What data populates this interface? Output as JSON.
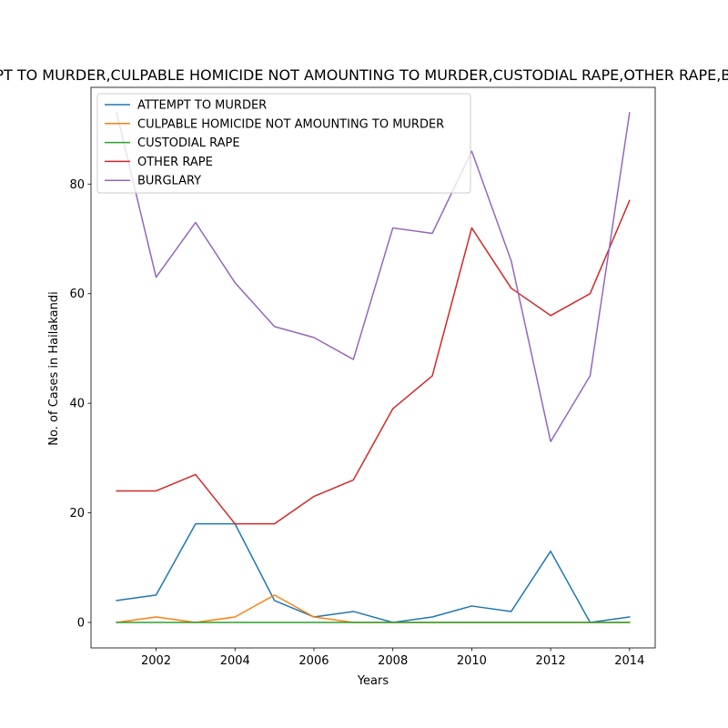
{
  "chart_data": {
    "type": "line",
    "title": "ATTEMPT TO MURDER,CULPABLE HOMICIDE NOT AMOUNTING TO MURDER,CUSTODIAL RAPE,OTHER RAPE,BURGLARY",
    "xlabel": "Years",
    "ylabel": "No. of Cases in Hailakandi",
    "xlim": [
      2000.35,
      2014.65
    ],
    "ylim": [
      -4.65,
      97.65
    ],
    "xticks": [
      2002,
      2004,
      2006,
      2008,
      2010,
      2012,
      2014
    ],
    "yticks": [
      0,
      20,
      40,
      60,
      80
    ],
    "grid": false,
    "legend_position": "top-left",
    "x": [
      2001,
      2002,
      2003,
      2004,
      2005,
      2006,
      2007,
      2008,
      2009,
      2010,
      2011,
      2012,
      2013,
      2014
    ],
    "series": [
      {
        "name": "ATTEMPT TO MURDER",
        "color": "#1f77b4",
        "values": [
          4,
          5,
          18,
          18,
          4,
          1,
          2,
          0,
          1,
          3,
          2,
          13,
          0,
          1
        ]
      },
      {
        "name": "CULPABLE HOMICIDE NOT AMOUNTING TO MURDER",
        "color": "#ff7f0e",
        "values": [
          0,
          1,
          0,
          1,
          5,
          1,
          0,
          0,
          0,
          0,
          0,
          0,
          0,
          0
        ]
      },
      {
        "name": "CUSTODIAL RAPE",
        "color": "#2ca02c",
        "values": [
          0,
          0,
          0,
          0,
          0,
          0,
          0,
          0,
          0,
          0,
          0,
          0,
          0,
          0
        ]
      },
      {
        "name": "OTHER RAPE",
        "color": "#d62728",
        "values": [
          24,
          24,
          27,
          18,
          18,
          23,
          26,
          39,
          45,
          72,
          61,
          56,
          60,
          77
        ]
      },
      {
        "name": "BURGLARY",
        "color": "#9467bd",
        "values": [
          93,
          63,
          73,
          62,
          54,
          52,
          48,
          72,
          71,
          86,
          66,
          33,
          45,
          93
        ]
      }
    ]
  }
}
